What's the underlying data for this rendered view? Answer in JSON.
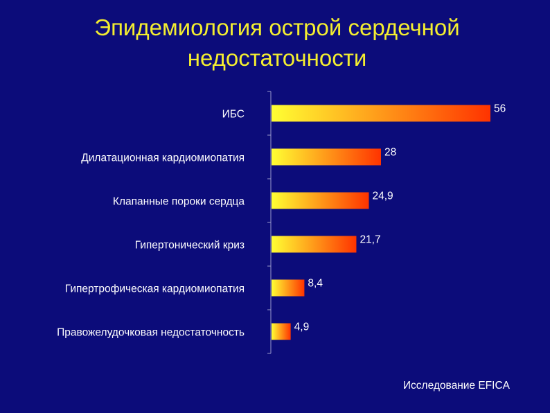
{
  "slide": {
    "title_line1": "Эпидемиология острой сердечной",
    "title_line2": "недостаточности",
    "source": "Исследование EFICA",
    "colors": {
      "background": "#0c0c7a",
      "title": "#f4ee30",
      "text": "#ffffff",
      "axis": "#9a9acc",
      "bar_start": "#ffff33",
      "bar_end": "#ff3300"
    }
  },
  "chart_data": {
    "type": "bar",
    "orientation": "horizontal",
    "categories": [
      "ИБС",
      "Дилатационная кардиомиопатия",
      "Клапанные пороки сердца",
      "Гипертонический криз",
      "Гипертрофическая кардиомиопатия",
      "Правожелудочковая недостаточность"
    ],
    "values": [
      56,
      28,
      24.9,
      21.7,
      8.4,
      4.9
    ],
    "data_labels": [
      "56",
      "28",
      "24,9",
      "21,7",
      "8,4",
      "4,9"
    ],
    "title": "Эпидемиология острой сердечной недостаточности",
    "xlabel": "",
    "ylabel": "",
    "xlim": [
      0,
      56
    ],
    "grid": false,
    "legend": "none"
  }
}
